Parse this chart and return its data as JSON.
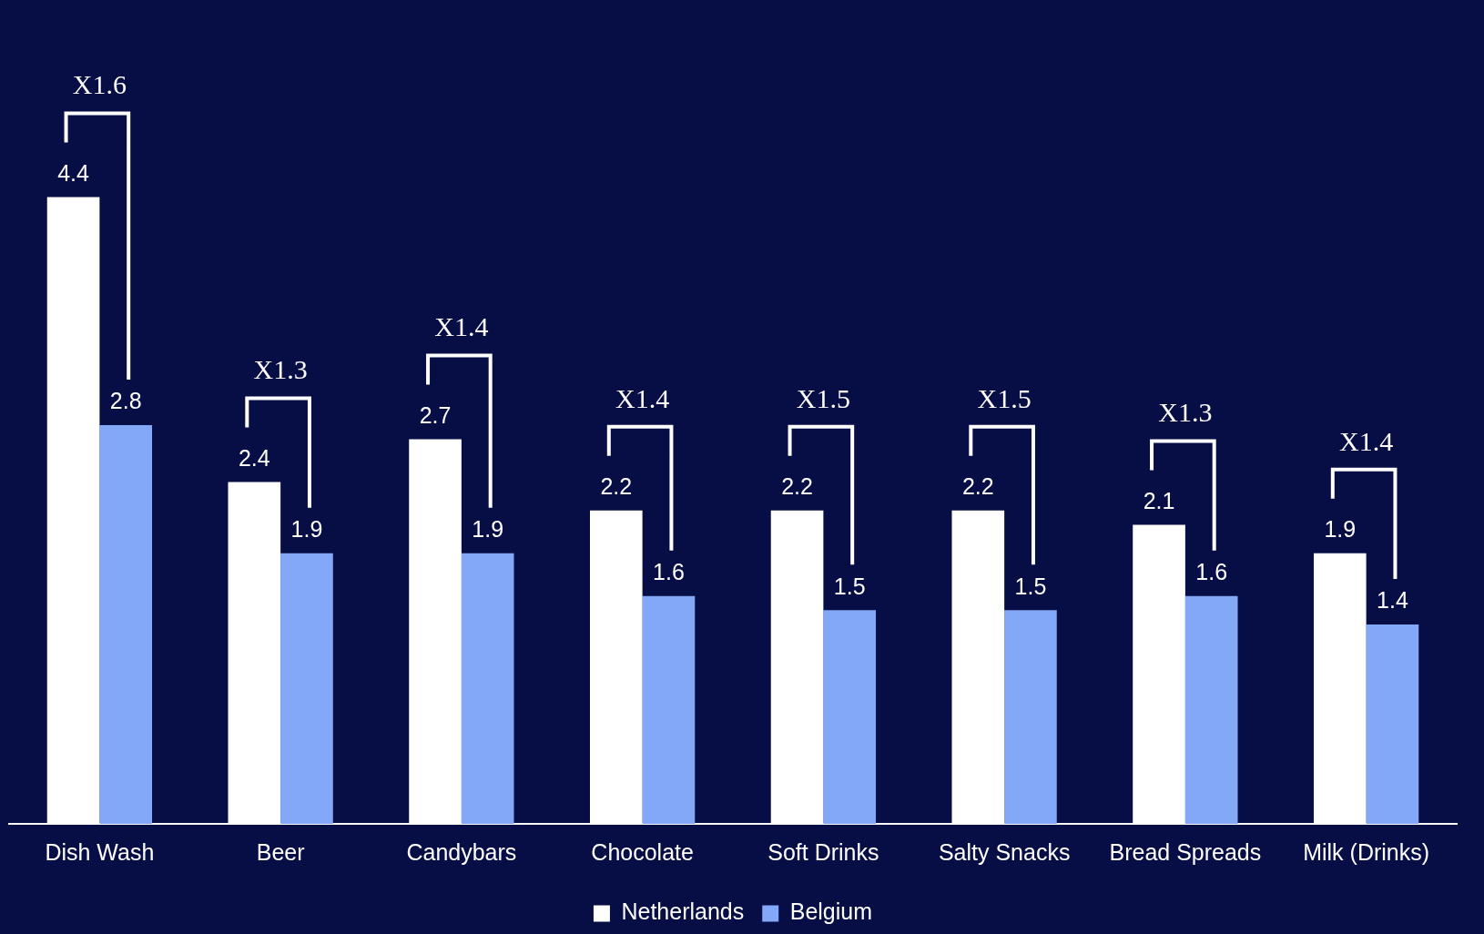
{
  "chart_data": {
    "type": "bar",
    "categories": [
      "Dish Wash",
      "Beer",
      "Candybars",
      "Chocolate",
      "Soft Drinks",
      "Salty Snacks",
      "Bread Spreads",
      "Milk (Drinks)"
    ],
    "series": [
      {
        "name": "Netherlands",
        "color": "#ffffff",
        "values": [
          4.4,
          2.4,
          2.7,
          2.2,
          2.2,
          2.2,
          2.1,
          1.9
        ]
      },
      {
        "name": "Belgium",
        "color": "#84a8f8",
        "values": [
          2.8,
          1.9,
          1.9,
          1.6,
          1.5,
          1.5,
          1.6,
          1.4
        ]
      }
    ],
    "data_labels": true,
    "grid": false,
    "legend": "bottom",
    "annotations": [
      "X1.6",
      "X1.3",
      "X1.4",
      "X1.4",
      "X1.5",
      "X1.5",
      "X1.3",
      "X1.4"
    ]
  }
}
